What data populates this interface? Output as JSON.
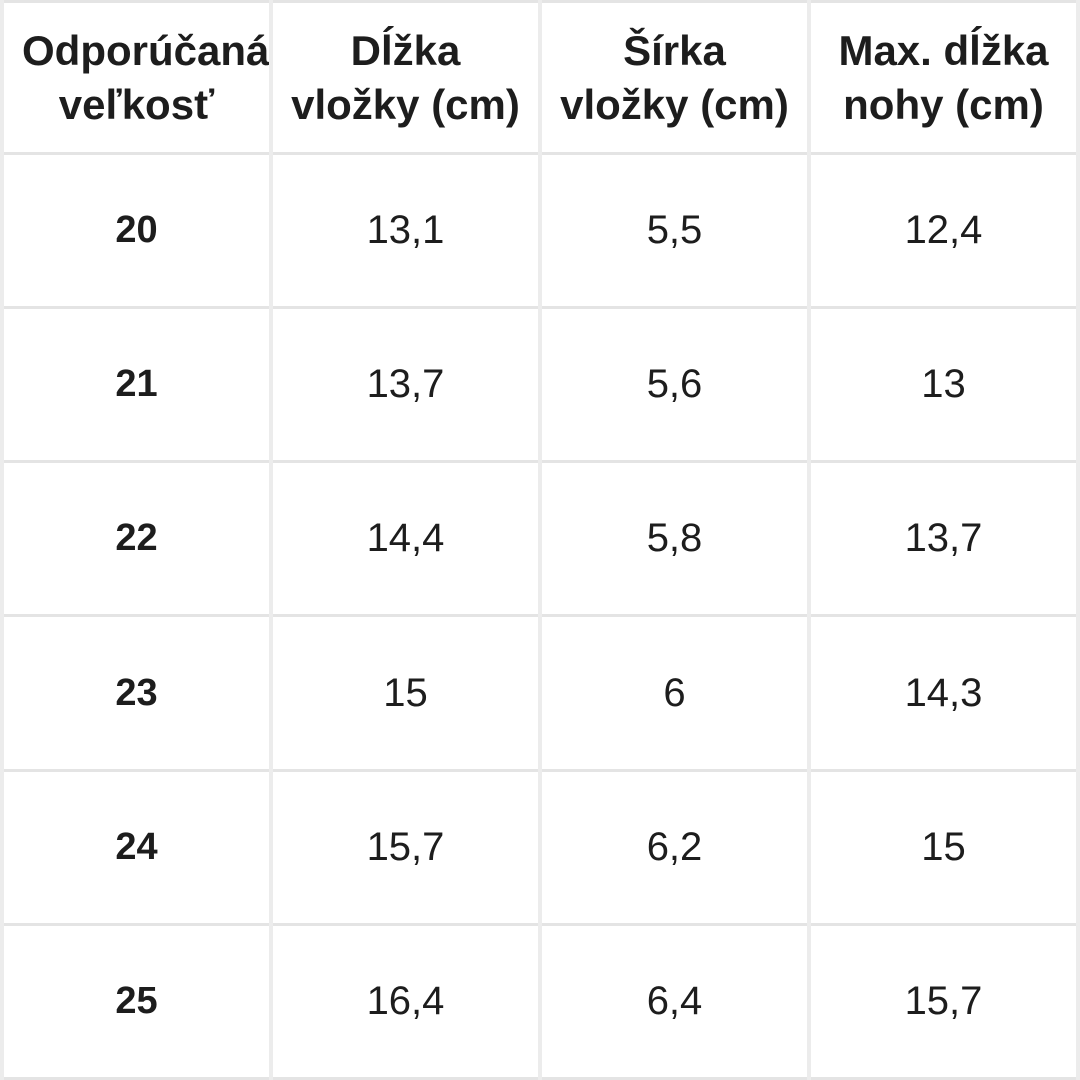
{
  "chart_data": {
    "type": "table",
    "columns": [
      "Odporúčaná veľkosť",
      "Dĺžka vložky (cm)",
      "Šírka vložky (cm)",
      "Max. dĺžka nohy (cm)"
    ],
    "rows": [
      [
        "20",
        "13,1",
        "5,5",
        "12,4"
      ],
      [
        "21",
        "13,7",
        "5,6",
        "13"
      ],
      [
        "22",
        "14,4",
        "5,8",
        "13,7"
      ],
      [
        "23",
        "15",
        "6",
        "14,3"
      ],
      [
        "24",
        "15,7",
        "6,2",
        "15"
      ],
      [
        "25",
        "16,4",
        "6,4",
        "15,7"
      ]
    ]
  },
  "colors": {
    "background": "#ffffff",
    "border_vertical": "#ececec",
    "border_horizontal": "#e4e4e4",
    "text": "#1d1d1d"
  }
}
